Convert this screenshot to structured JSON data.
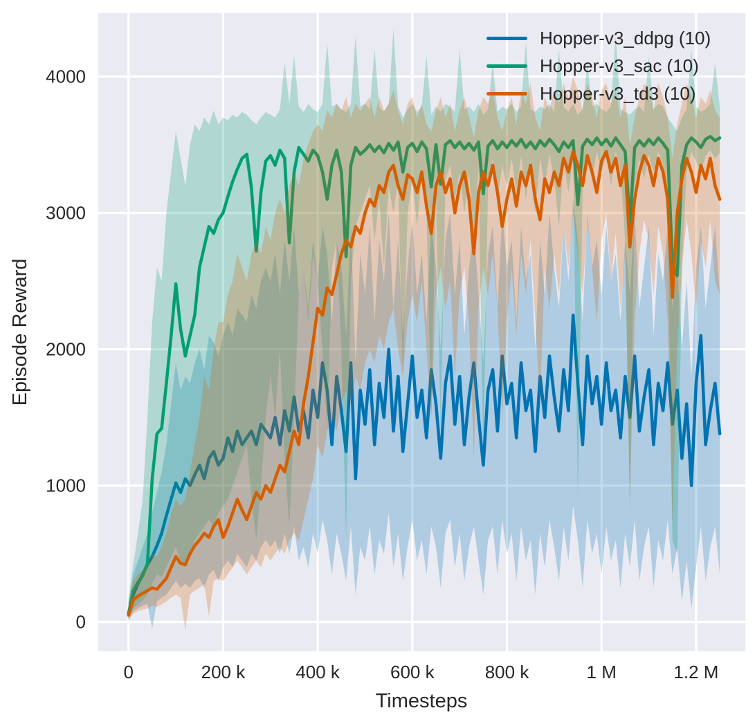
{
  "figure": {
    "background": "#ffffff",
    "plot_background": "#eaeaf2",
    "grid_color": "#ffffff",
    "text_color": "#262626"
  },
  "chart_data": {
    "type": "line",
    "title": "",
    "xlabel": "Timesteps",
    "ylabel": "Episode Reward",
    "grid": true,
    "legend_position": "upper right",
    "band_opacity": 0.25,
    "line_width": 4.5,
    "xlim": [
      -64000,
      1304000
    ],
    "ylim": [
      -215,
      4465
    ],
    "x_ticks": [
      {
        "value": 0,
        "label": "0"
      },
      {
        "value": 200000,
        "label": "200 k"
      },
      {
        "value": 400000,
        "label": "400 k"
      },
      {
        "value": 600000,
        "label": "600 k"
      },
      {
        "value": 800000,
        "label": "800 k"
      },
      {
        "value": 1000000,
        "label": "1 M"
      },
      {
        "value": 1200000,
        "label": "1.2 M"
      }
    ],
    "y_ticks": [
      {
        "value": 0,
        "label": "0"
      },
      {
        "value": 1000,
        "label": "1000"
      },
      {
        "value": 2000,
        "label": "2000"
      },
      {
        "value": 3000,
        "label": "3000"
      },
      {
        "value": 4000,
        "label": "4000"
      }
    ],
    "x_start": 0,
    "x_step": 10000,
    "series": [
      {
        "name": "Hopper-v3_ddpg (10)",
        "color": "#0173b2",
        "mean": [
          60,
          200,
          280,
          350,
          420,
          480,
          560,
          650,
          780,
          900,
          1020,
          950,
          1050,
          1000,
          1080,
          1150,
          1050,
          1200,
          1250,
          1150,
          1200,
          1350,
          1250,
          1400,
          1300,
          1350,
          1400,
          1300,
          1450,
          1400,
          1350,
          1500,
          1300,
          1550,
          1400,
          1650,
          1400,
          1550,
          1350,
          1700,
          1500,
          1900,
          1700,
          1300,
          1800,
          1550,
          1250,
          1900,
          1050,
          1700,
          1450,
          1850,
          1300,
          1750,
          1500,
          2000,
          1400,
          1800,
          1250,
          1600,
          1950,
          1500,
          1700,
          1350,
          1850,
          1600,
          1200,
          1750,
          1950,
          1450,
          1800,
          1300,
          1650,
          1900,
          1500,
          1150,
          1700,
          1850,
          1400,
          1950,
          1600,
          1750,
          1350,
          1900,
          1550,
          1700,
          1250,
          1800,
          1500,
          1950,
          1650,
          1400,
          1850,
          1550,
          2250,
          1750,
          1300,
          1950,
          1600,
          1800,
          1450,
          1900,
          1550,
          1700,
          1350,
          1800,
          1500,
          1950,
          1400,
          1650,
          1850,
          1300,
          1750,
          1550,
          1900,
          1450,
          1700,
          1200,
          1600,
          1000,
          1750,
          2100,
          1300,
          1550,
          1750,
          1380
        ],
        "upper": [
          150,
          350,
          450,
          550,
          650,
          800,
          950,
          1100,
          1300,
          1600,
          1900,
          1700,
          1800,
          1750,
          1900,
          2000,
          1850,
          2100,
          2050,
          1950,
          2100,
          2200,
          2100,
          2300,
          2250,
          2200,
          2400,
          2300,
          2500,
          2600,
          2500,
          2700,
          2400,
          2800,
          2500,
          2900,
          2400,
          2600,
          2300,
          2800,
          2500,
          2900,
          2700,
          2200,
          2800,
          2600,
          2100,
          2900,
          1900,
          2700,
          2400,
          2900,
          2200,
          2800,
          2500,
          3000,
          2300,
          2800,
          2100,
          2600,
          2950,
          2400,
          2700,
          2200,
          2900,
          2600,
          2000,
          2800,
          3000,
          2400,
          2800,
          2100,
          2600,
          2900,
          2400,
          1900,
          2700,
          2900,
          2300,
          3000,
          2600,
          2800,
          2200,
          2900,
          2500,
          2700,
          2000,
          2800,
          2400,
          3000,
          2600,
          2300,
          2900,
          2500,
          3100,
          2800,
          2200,
          3000,
          2600,
          2800,
          2400,
          2900,
          2500,
          2700,
          2200,
          2800,
          2400,
          3000,
          2300,
          2600,
          2900,
          2100,
          2700,
          2500,
          2900,
          2300,
          2600,
          2000,
          2500,
          1800,
          2600,
          2900,
          2300,
          2600,
          2900,
          2400
        ],
        "lower": [
          10,
          80,
          100,
          120,
          130,
          -50,
          150,
          180,
          200,
          250,
          300,
          250,
          280,
          250,
          300,
          320,
          250,
          350,
          380,
          300,
          400,
          450,
          400,
          500,
          450,
          400,
          500,
          450,
          550,
          600,
          550,
          600,
          500,
          650,
          500,
          700,
          450,
          550,
          400,
          650,
          500,
          750,
          600,
          350,
          650,
          500,
          300,
          700,
          200,
          550,
          450,
          700,
          350,
          600,
          500,
          800,
          400,
          650,
          300,
          550,
          750,
          450,
          600,
          350,
          700,
          550,
          250,
          650,
          750,
          400,
          650,
          300,
          550,
          700,
          450,
          200,
          600,
          700,
          350,
          750,
          500,
          650,
          300,
          700,
          450,
          600,
          200,
          650,
          400,
          750,
          550,
          300,
          700,
          450,
          850,
          600,
          250,
          750,
          500,
          650,
          350,
          700,
          450,
          600,
          250,
          650,
          400,
          750,
          300,
          550,
          700,
          250,
          600,
          450,
          750,
          350,
          550,
          150,
          450,
          100,
          400,
          700,
          300,
          550,
          700,
          350
        ]
      },
      {
        "name": "Hopper-v3_sac (10)",
        "color": "#029e73",
        "mean": [
          60,
          230,
          290,
          340,
          430,
          1050,
          1380,
          1420,
          1750,
          2100,
          2480,
          2150,
          1950,
          2100,
          2250,
          2600,
          2750,
          2900,
          2850,
          2950,
          3000,
          3120,
          3230,
          3320,
          3400,
          3430,
          3180,
          2720,
          3150,
          3380,
          3420,
          3350,
          3460,
          3400,
          2780,
          3300,
          3480,
          3430,
          3380,
          3460,
          3420,
          3300,
          3100,
          3350,
          3460,
          3300,
          2680,
          3350,
          3480,
          3430,
          3460,
          3500,
          3450,
          3490,
          3440,
          3510,
          3460,
          3520,
          3300,
          3480,
          3510,
          3450,
          3520,
          3470,
          3190,
          3500,
          3210,
          3500,
          3530,
          3480,
          3520,
          3470,
          3510,
          3460,
          3520,
          3140,
          3490,
          3530,
          3470,
          3520,
          3480,
          3530,
          3490,
          3540,
          3480,
          3520,
          3470,
          3530,
          3490,
          3540,
          3500,
          3450,
          3520,
          3480,
          3530,
          3060,
          3490,
          3540,
          3500,
          3550,
          3500,
          3540,
          3490,
          3550,
          3500,
          3450,
          2920,
          3480,
          3530,
          3490,
          3540,
          3500,
          3550,
          3510,
          3460,
          2620,
          2540,
          3350,
          3500,
          3550,
          3520,
          3480,
          3540,
          3560,
          3530,
          3550
        ],
        "upper": [
          180,
          420,
          650,
          900,
          1500,
          2200,
          2600,
          2500,
          3000,
          3300,
          3600,
          3400,
          3200,
          3500,
          3650,
          3600,
          3700,
          3650,
          3750,
          3650,
          3700,
          3680,
          3720,
          3700,
          3740,
          3720,
          3680,
          3650,
          3700,
          3740,
          3720,
          3700,
          3760,
          4100,
          3800,
          4150,
          3780,
          3740,
          3800,
          3760,
          3740,
          3800,
          4250,
          3780,
          3800,
          3760,
          3740,
          3800,
          4300,
          3780,
          3800,
          3760,
          4200,
          3780,
          3740,
          3800,
          4350,
          3780,
          3700,
          3760,
          3800,
          3740,
          3780,
          4150,
          3720,
          3780,
          3740,
          3800,
          3780,
          3740,
          4200,
          3760,
          3780,
          3740,
          3800,
          3720,
          3760,
          4100,
          3740,
          3780,
          3760,
          3800,
          3740,
          3780,
          4250,
          3760,
          3740,
          3780,
          3760,
          3800,
          3740,
          4200,
          3780,
          3740,
          3800,
          3720,
          3760,
          4100,
          3780,
          3800,
          3760,
          3740,
          3780,
          4300,
          3760,
          3740,
          3720,
          3760,
          3780,
          3740,
          4150,
          3760,
          3800,
          3780,
          3700,
          3650,
          3600,
          3700,
          3760,
          4200,
          3780,
          3740,
          3760,
          3800,
          4100,
          3780
        ],
        "lower": [
          20,
          100,
          130,
          160,
          200,
          280,
          350,
          330,
          400,
          480,
          550,
          450,
          400,
          500,
          600,
          650,
          700,
          750,
          700,
          800,
          850,
          900,
          1000,
          1100,
          1200,
          1300,
          900,
          600,
          1000,
          1500,
          1800,
          1500,
          2000,
          1200,
          700,
          1500,
          2400,
          2600,
          2200,
          2700,
          2500,
          2000,
          1400,
          2600,
          2800,
          2000,
          600,
          2500,
          2900,
          3000,
          3100,
          3200,
          2800,
          3100,
          2600,
          3200,
          3000,
          3250,
          1800,
          3000,
          3250,
          2900,
          3300,
          3000,
          1500,
          3200,
          1400,
          3250,
          3350,
          3100,
          3300,
          3000,
          3300,
          2800,
          3350,
          1200,
          3200,
          3400,
          3100,
          3350,
          3200,
          3400,
          3150,
          3420,
          3100,
          3380,
          3000,
          3400,
          3200,
          3430,
          3250,
          2900,
          3380,
          3150,
          3400,
          900,
          3200,
          3430,
          3250,
          3450,
          3300,
          3420,
          3200,
          3450,
          3300,
          2800,
          800,
          3200,
          3400,
          3250,
          3430,
          3300,
          3450,
          3350,
          2900,
          600,
          500,
          2600,
          3300,
          3450,
          3380,
          3300,
          3420,
          3460,
          3400,
          3440
        ]
      },
      {
        "name": "Hopper-v3_td3 (10)",
        "color": "#d55e00",
        "mean": [
          50,
          160,
          190,
          210,
          230,
          250,
          240,
          280,
          320,
          400,
          480,
          430,
          420,
          500,
          560,
          600,
          650,
          620,
          700,
          750,
          620,
          700,
          800,
          900,
          820,
          750,
          850,
          950,
          900,
          1000,
          950,
          1050,
          1150,
          1100,
          1250,
          1400,
          1300,
          1600,
          1800,
          2050,
          2300,
          2250,
          2450,
          2400,
          2550,
          2700,
          2800,
          2750,
          2900,
          2850,
          3000,
          3100,
          3050,
          3200,
          3150,
          3300,
          3350,
          3200,
          3100,
          3280,
          3250,
          3150,
          3300,
          3050,
          2850,
          3200,
          3300,
          3150,
          3250,
          3000,
          3200,
          3300,
          3100,
          2700,
          3150,
          3300,
          3200,
          3350,
          3150,
          2900,
          3100,
          3250,
          3050,
          3300,
          3200,
          3350,
          3100,
          2950,
          3250,
          3150,
          3300,
          3200,
          3400,
          3300,
          3450,
          3350,
          3200,
          3420,
          3300,
          3150,
          3380,
          3450,
          3300,
          3400,
          3200,
          3350,
          2750,
          3100,
          3300,
          3420,
          3350,
          3200,
          3400,
          3300,
          3100,
          2380,
          3000,
          3250,
          3400,
          3300,
          3150,
          3350,
          3250,
          3400,
          3200,
          3100
        ],
        "upper": [
          150,
          300,
          350,
          380,
          420,
          500,
          480,
          550,
          650,
          800,
          900,
          850,
          900,
          1100,
          1300,
          1500,
          1800,
          1700,
          2000,
          2200,
          2200,
          2400,
          2500,
          2700,
          2600,
          2500,
          2700,
          2800,
          2700,
          2900,
          2800,
          3000,
          3100,
          3000,
          3200,
          3300,
          3200,
          3400,
          3500,
          3600,
          3650,
          3600,
          3750,
          3700,
          3800,
          3750,
          3850,
          3700,
          3800,
          3750,
          3800,
          3850,
          3700,
          3850,
          3750,
          3800,
          3900,
          3750,
          3650,
          3800,
          3850,
          3700,
          3800,
          3650,
          3600,
          3750,
          3850,
          3700,
          3800,
          3600,
          3750,
          3850,
          3700,
          3550,
          3750,
          3850,
          3800,
          3900,
          3700,
          3600,
          3750,
          3850,
          3650,
          3900,
          3800,
          3950,
          3700,
          3600,
          3850,
          3750,
          3900,
          3800,
          3950,
          3850,
          4000,
          3900,
          3750,
          3950,
          3850,
          3700,
          3900,
          3950,
          3800,
          3900,
          3700,
          3850,
          3500,
          3700,
          3850,
          3950,
          3900,
          3750,
          3950,
          3850,
          3700,
          3400,
          3650,
          3800,
          3950,
          3850,
          3700,
          3850,
          3800,
          3900,
          3750,
          3700
        ],
        "lower": [
          10,
          60,
          80,
          90,
          100,
          120,
          110,
          130,
          150,
          180,
          200,
          180,
          -60,
          200,
          230,
          250,
          280,
          40,
          300,
          320,
          300,
          350,
          400,
          450,
          400,
          350,
          400,
          450,
          400,
          500,
          450,
          500,
          550,
          500,
          600,
          650,
          600,
          750,
          900,
          1050,
          1300,
          1200,
          1400,
          1500,
          1400,
          1600,
          1700,
          1600,
          1800,
          1700,
          1900,
          2000,
          1900,
          2100,
          2000,
          2200,
          2300,
          2000,
          1800,
          2200,
          2400,
          2200,
          2500,
          2000,
          1500,
          2400,
          2600,
          2300,
          2500,
          1800,
          2400,
          2600,
          2200,
          1200,
          2300,
          2600,
          2400,
          2700,
          2300,
          1500,
          2200,
          2600,
          2100,
          2700,
          2400,
          2800,
          2200,
          1600,
          2600,
          2300,
          2700,
          2400,
          2900,
          2600,
          3000,
          2700,
          2400,
          2950,
          2600,
          2200,
          2800,
          3000,
          2500,
          2850,
          2300,
          2700,
          900,
          2200,
          2700,
          2950,
          2800,
          2400,
          2900,
          2700,
          2200,
          700,
          2000,
          2600,
          2950,
          2700,
          2300,
          2800,
          2600,
          2950,
          2500,
          2400
        ]
      }
    ]
  }
}
